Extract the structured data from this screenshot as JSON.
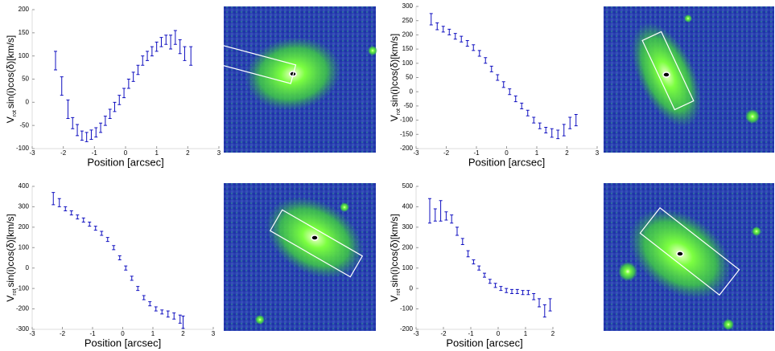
{
  "chart_data": [
    {
      "type": "errorbar",
      "x_label": "Position [arcsec]",
      "y_label": [
        "V",
        "rot",
        "sin(i)cos(δ)[km/s]"
      ],
      "color": "#1010c0",
      "xlim": [
        -3,
        3
      ],
      "xticks": [
        -3,
        -2,
        -1,
        0,
        1,
        2,
        3
      ],
      "ylim": [
        -100,
        200
      ],
      "yticks": [
        -100,
        -50,
        0,
        50,
        100,
        150,
        200
      ],
      "x": [
        -2.25,
        -2.05,
        -1.85,
        -1.7,
        -1.55,
        -1.4,
        -1.25,
        -1.1,
        -0.95,
        -0.8,
        -0.65,
        -0.5,
        -0.35,
        -0.2,
        -0.05,
        0.1,
        0.25,
        0.4,
        0.55,
        0.7,
        0.85,
        1.0,
        1.15,
        1.3,
        1.45,
        1.6,
        1.75,
        1.9,
        2.1
      ],
      "values": [
        90,
        35,
        -15,
        -45,
        -60,
        -72,
        -75,
        -70,
        -65,
        -55,
        -40,
        -25,
        -10,
        5,
        20,
        40,
        55,
        70,
        90,
        100,
        110,
        120,
        130,
        135,
        130,
        140,
        120,
        105,
        100
      ],
      "errors": [
        20,
        20,
        20,
        12,
        12,
        10,
        10,
        10,
        10,
        10,
        10,
        10,
        10,
        10,
        10,
        10,
        10,
        10,
        10,
        10,
        10,
        10,
        10,
        10,
        15,
        15,
        15,
        15,
        20
      ]
    },
    {
      "type": "errorbar",
      "x_label": "Position [arcsec]",
      "y_label": [
        "V",
        "rot",
        "sin(i)cos(δ)[km/s]"
      ],
      "color": "#1010c0",
      "xlim": [
        -3,
        3
      ],
      "xticks": [
        -3,
        -2,
        -1,
        0,
        1,
        2,
        3
      ],
      "ylim": [
        -200,
        300
      ],
      "yticks": [
        -200,
        -150,
        -100,
        -50,
        0,
        50,
        100,
        150,
        200,
        250,
        300
      ],
      "x": [
        -2.5,
        -2.3,
        -2.1,
        -1.9,
        -1.7,
        -1.5,
        -1.3,
        -1.1,
        -0.9,
        -0.7,
        -0.5,
        -0.3,
        -0.1,
        0.1,
        0.3,
        0.5,
        0.7,
        0.9,
        1.1,
        1.3,
        1.5,
        1.7,
        1.9,
        2.1,
        2.3
      ],
      "values": [
        255,
        230,
        220,
        210,
        195,
        185,
        170,
        155,
        135,
        110,
        80,
        50,
        25,
        0,
        -25,
        -50,
        -75,
        -100,
        -120,
        -135,
        -145,
        -150,
        -135,
        -110,
        -100
      ],
      "errors": [
        20,
        12,
        10,
        10,
        10,
        10,
        10,
        10,
        10,
        10,
        10,
        10,
        10,
        10,
        10,
        10,
        10,
        10,
        10,
        10,
        15,
        15,
        20,
        20,
        20
      ]
    },
    {
      "type": "errorbar",
      "x_label": "Position [arcsec]",
      "y_label": [
        "V",
        "rot",
        "sin(i)cos(δ)[km/s]"
      ],
      "color": "#1010c0",
      "xlim": [
        -3,
        3
      ],
      "xticks": [
        -3,
        -2,
        -1,
        0,
        1,
        2,
        3
      ],
      "ylim": [
        -300,
        400
      ],
      "yticks": [
        -300,
        -200,
        -100,
        0,
        100,
        200,
        300,
        400
      ],
      "x": [
        -2.3,
        -2.1,
        -1.9,
        -1.7,
        -1.5,
        -1.3,
        -1.1,
        -0.9,
        -0.7,
        -0.5,
        -0.3,
        -0.1,
        0.1,
        0.3,
        0.5,
        0.7,
        0.9,
        1.1,
        1.3,
        1.5,
        1.7,
        1.9,
        2.0
      ],
      "values": [
        340,
        320,
        290,
        270,
        250,
        235,
        215,
        195,
        170,
        140,
        100,
        50,
        0,
        -50,
        -100,
        -145,
        -175,
        -200,
        -215,
        -225,
        -235,
        -250,
        -265
      ],
      "errors": [
        30,
        20,
        10,
        10,
        10,
        10,
        10,
        10,
        10,
        10,
        10,
        10,
        10,
        10,
        10,
        10,
        10,
        10,
        10,
        15,
        15,
        20,
        30
      ]
    },
    {
      "type": "errorbar",
      "x_label": "Position [arcsec]",
      "y_label": [
        "V",
        "rot",
        "sin(i)cos(δ)[km/s]"
      ],
      "color": "#1010c0",
      "xlim": [
        -3,
        2
      ],
      "xticks": [
        -3,
        -2,
        -1,
        0,
        1,
        2
      ],
      "ylim": [
        -200,
        500
      ],
      "yticks": [
        -200,
        -100,
        0,
        100,
        200,
        300,
        400,
        500
      ],
      "x": [
        -2.5,
        -2.3,
        -2.1,
        -1.9,
        -1.7,
        -1.5,
        -1.3,
        -1.1,
        -0.9,
        -0.7,
        -0.5,
        -0.3,
        -0.1,
        0.1,
        0.3,
        0.5,
        0.7,
        0.9,
        1.1,
        1.3,
        1.5,
        1.7,
        1.9
      ],
      "values": [
        380,
        360,
        380,
        355,
        340,
        280,
        230,
        170,
        130,
        100,
        65,
        35,
        15,
        0,
        -10,
        -15,
        -15,
        -20,
        -20,
        -40,
        -70,
        -110,
        -80
      ],
      "errors": [
        60,
        30,
        50,
        20,
        20,
        20,
        15,
        15,
        10,
        10,
        10,
        10,
        10,
        10,
        10,
        10,
        10,
        10,
        10,
        15,
        20,
        30,
        30
      ]
    }
  ]
}
